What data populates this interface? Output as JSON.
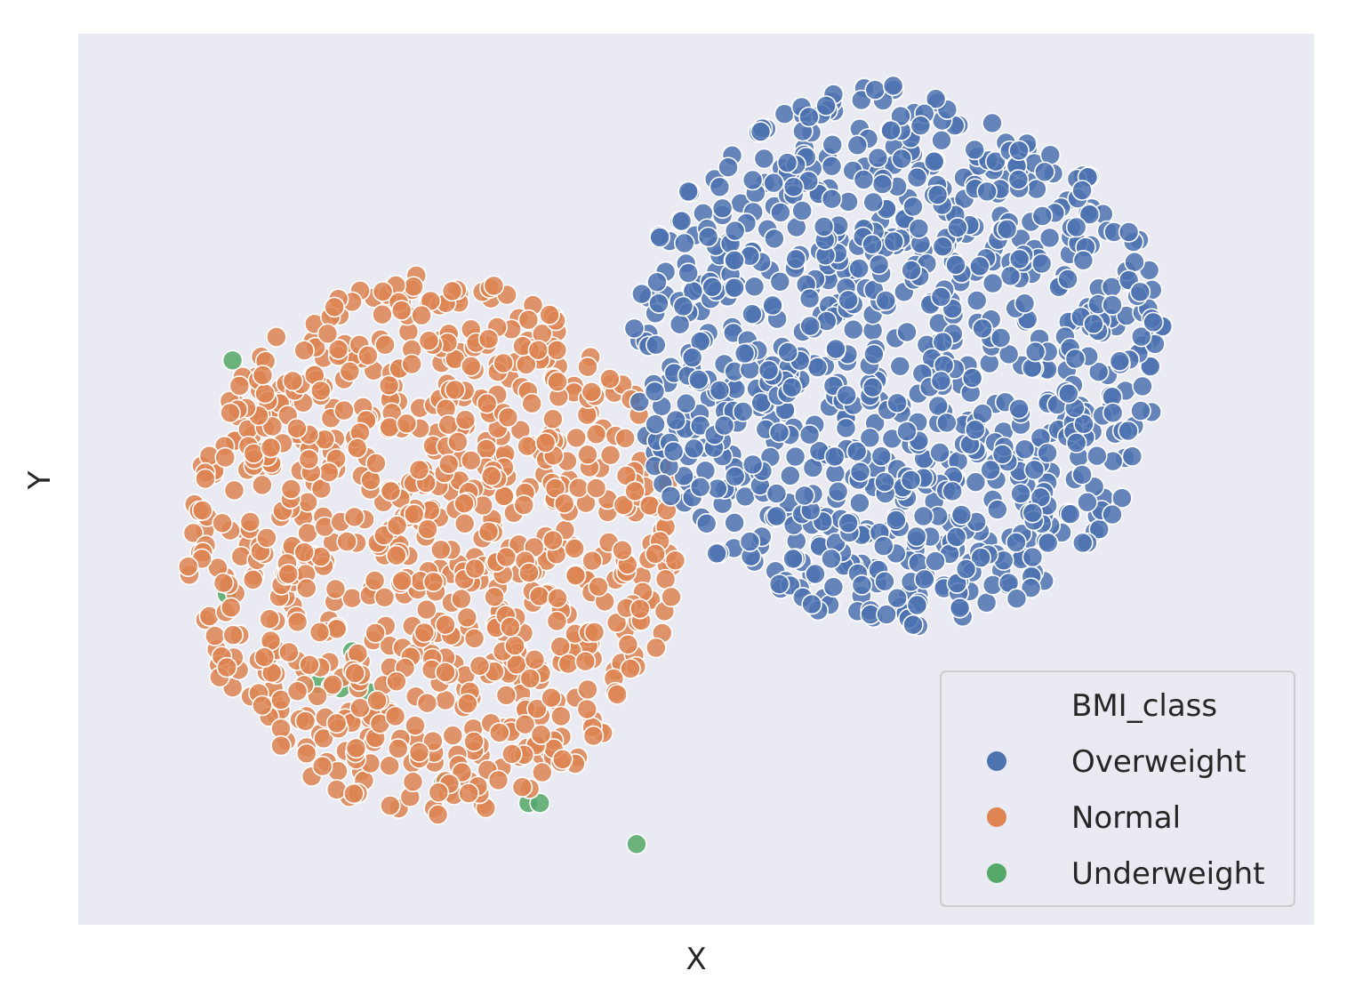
{
  "chart_data": {
    "type": "scatter",
    "title": "",
    "xlabel": "X",
    "ylabel": "Y",
    "xlim": [
      -100,
      100
    ],
    "ylim": [
      -100,
      100
    ],
    "grid": false,
    "ticks_visible": false,
    "background_color": "#eaeaf2",
    "legend": {
      "title": "BMI_class",
      "placement": "bottom-right",
      "entries": [
        "Overweight",
        "Normal",
        "Underweight"
      ]
    },
    "series": [
      {
        "name": "Overweight",
        "color": "#4c72b0",
        "generator": "cluster",
        "count": 950,
        "center": [
          36,
          30
        ],
        "spread": [
          47,
          66
        ],
        "seed": 7
      },
      {
        "name": "Normal",
        "color": "#dd8452",
        "generator": "cluster",
        "count": 880,
        "center": [
          -46,
          -16
        ],
        "spread": [
          43,
          66
        ],
        "seed": 21
      },
      {
        "name": "Underweight",
        "color": "#55a868",
        "points": [
          [
            -81,
            29
          ],
          [
            -82,
            -28
          ],
          [
            -60,
            -42
          ],
          [
            -66,
            -50
          ],
          [
            -62,
            -51
          ],
          [
            -55,
            -57
          ],
          [
            -44,
            -74
          ],
          [
            -42,
            -75
          ],
          [
            -29,
            -79
          ],
          [
            -27,
            -79
          ],
          [
            -10,
            -89
          ],
          [
            -75,
            -44
          ],
          [
            -57,
            -52
          ]
        ]
      }
    ]
  }
}
